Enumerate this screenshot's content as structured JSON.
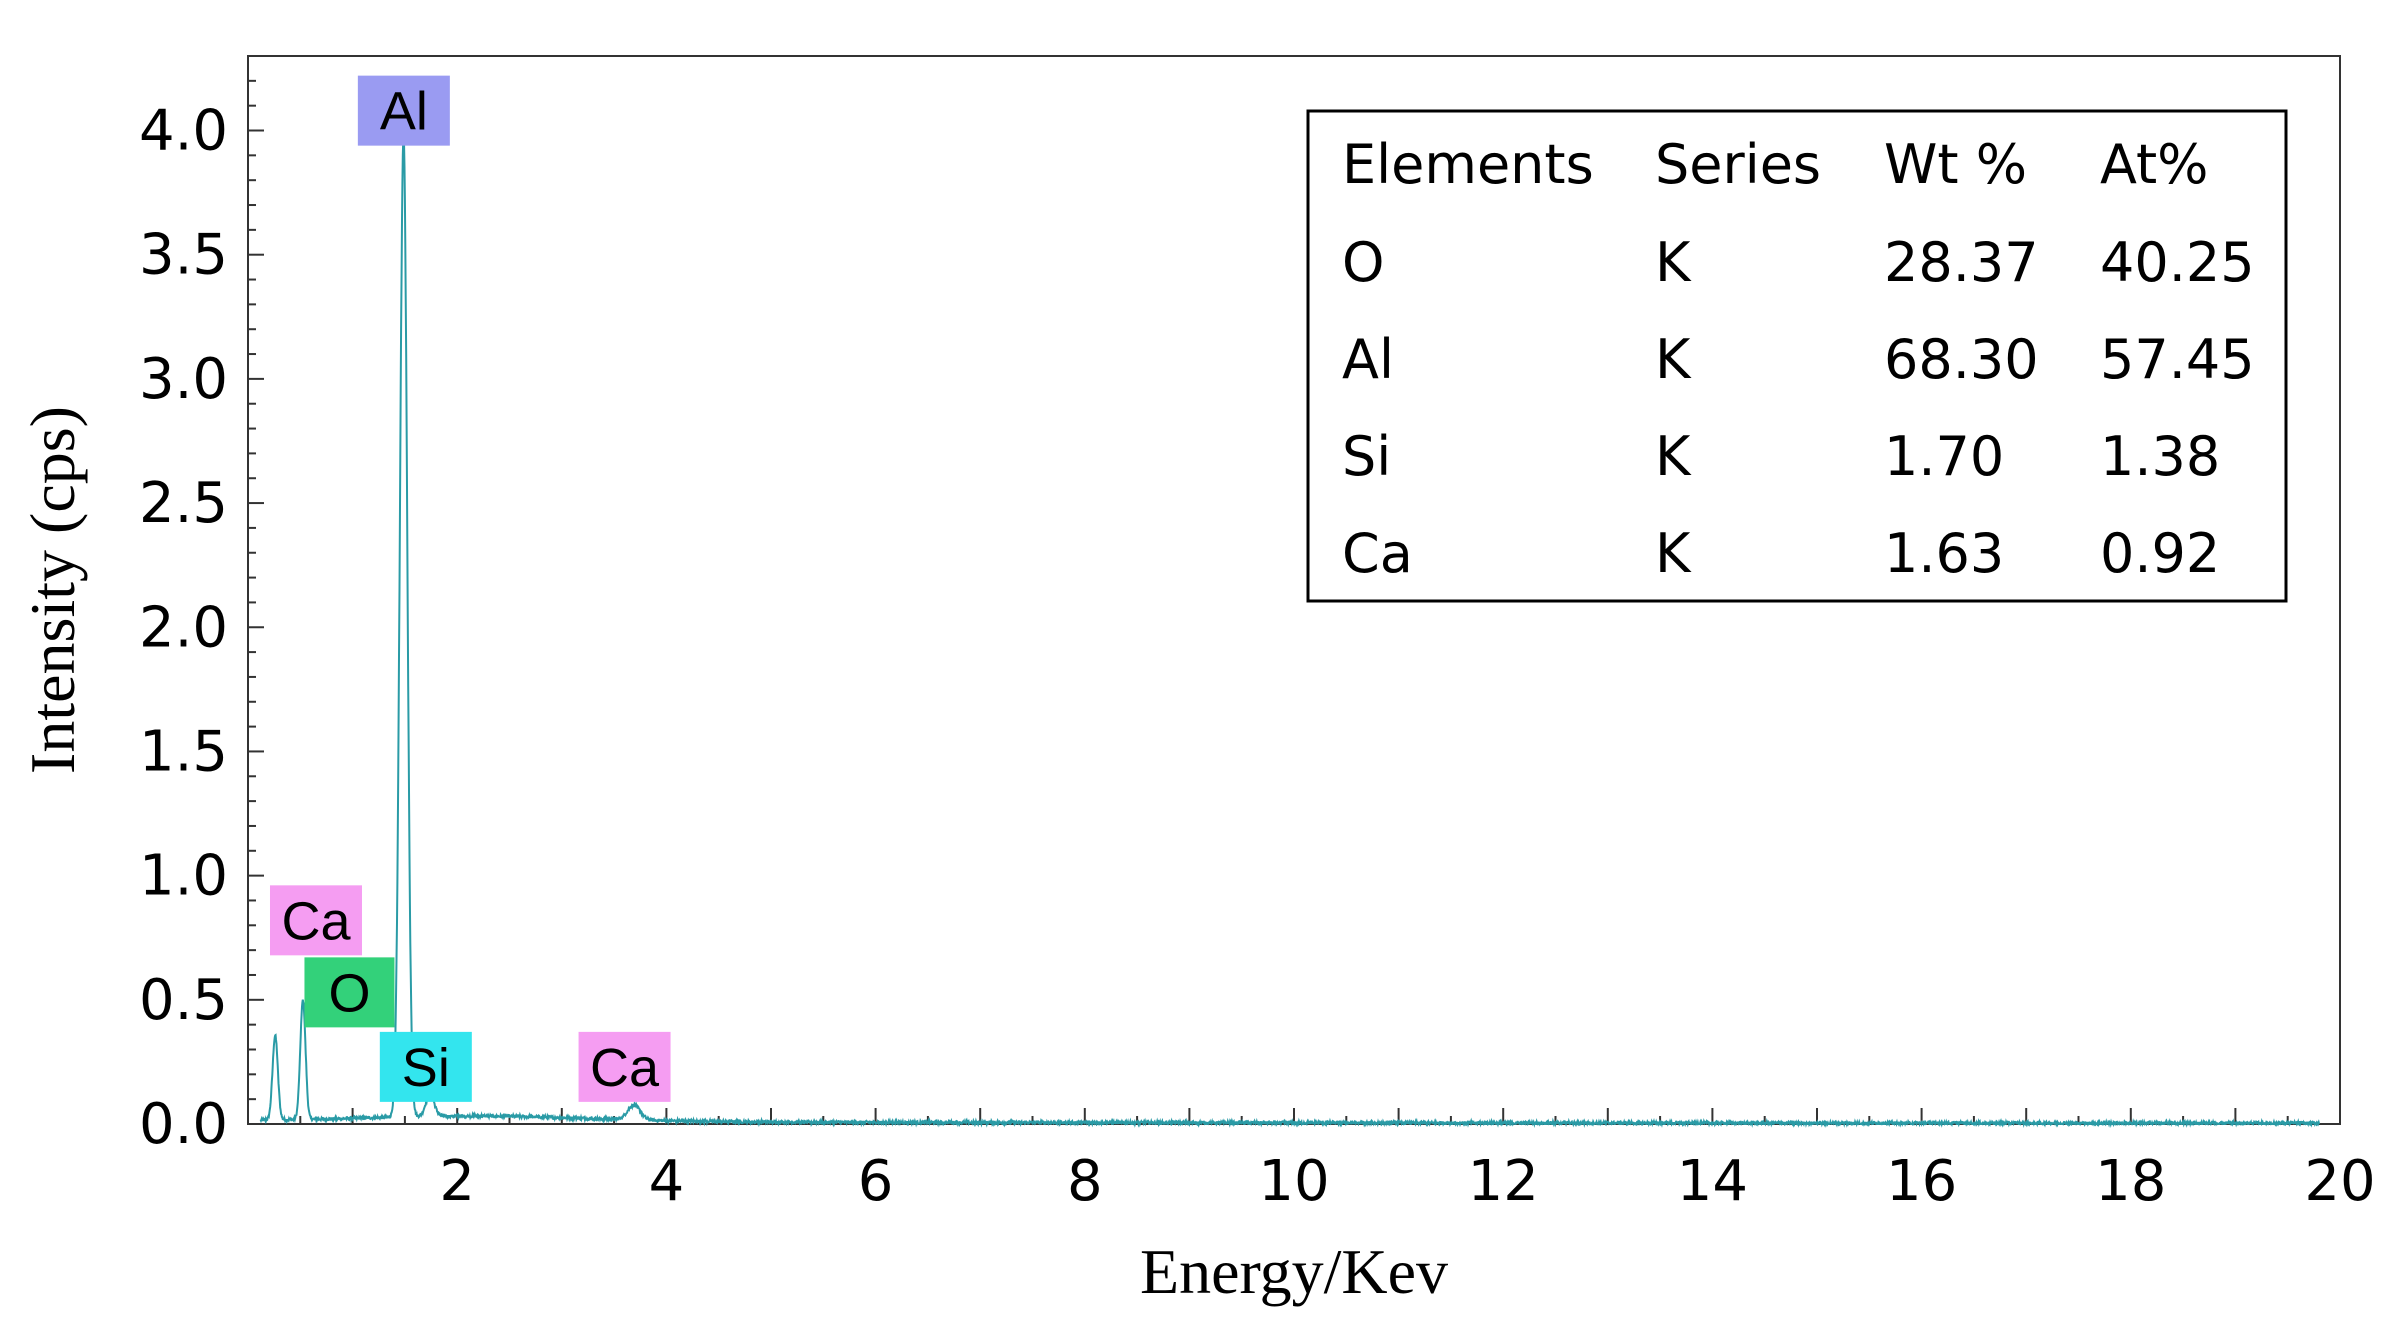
{
  "chart_data": {
    "type": "line",
    "xlabel": "Energy/Kev",
    "ylabel": "Intensity (cps)",
    "xlim": [
      0,
      20
    ],
    "ylim": [
      0,
      4.3
    ],
    "x_ticks": [
      "2",
      "4",
      "6",
      "8",
      "10",
      "12",
      "14",
      "16",
      "18",
      "20"
    ],
    "x_tick_values": [
      2,
      4,
      6,
      8,
      10,
      12,
      14,
      16,
      18,
      20
    ],
    "y_ticks": [
      "0.0",
      "0.5",
      "1.0",
      "1.5",
      "2.0",
      "2.5",
      "3.0",
      "3.5",
      "4.0"
    ],
    "y_tick_values": [
      0.0,
      0.5,
      1.0,
      1.5,
      2.0,
      2.5,
      3.0,
      3.5,
      4.0
    ],
    "grid": false,
    "line_color": "#2a9ba6",
    "peaks": [
      {
        "energy": 0.26,
        "intensity": 0.34,
        "width": 0.025
      },
      {
        "energy": 0.525,
        "intensity": 0.48,
        "width": 0.025
      },
      {
        "energy": 1.487,
        "intensity": 3.95,
        "width": 0.035
      },
      {
        "energy": 1.74,
        "intensity": 0.09,
        "width": 0.04
      },
      {
        "energy": 3.69,
        "intensity": 0.06,
        "width": 0.06
      }
    ],
    "peak_labels": [
      {
        "text": "Al",
        "energy": 1.49,
        "intensity": 4.08,
        "color": "#9a9bf2"
      },
      {
        "text": "Ca",
        "energy": 0.65,
        "intensity": 0.82,
        "color": "#f59df2"
      },
      {
        "text": "O",
        "energy": 0.97,
        "intensity": 0.53,
        "color": "#33d17a"
      },
      {
        "text": "Si",
        "energy": 1.7,
        "intensity": 0.23,
        "color": "#33e5ee"
      },
      {
        "text": "Ca",
        "energy": 3.6,
        "intensity": 0.23,
        "color": "#f59df2"
      }
    ],
    "table": {
      "headers": [
        "Elements",
        "Series",
        "Wt %",
        "At%"
      ],
      "rows": [
        [
          "O",
          "K",
          "28.37",
          "40.25"
        ],
        [
          "Al",
          "K",
          "68.30",
          "57.45"
        ],
        [
          "Si",
          "K",
          "1.70",
          "1.38"
        ],
        [
          "Ca",
          "K",
          "1.63",
          "0.92"
        ]
      ]
    }
  }
}
